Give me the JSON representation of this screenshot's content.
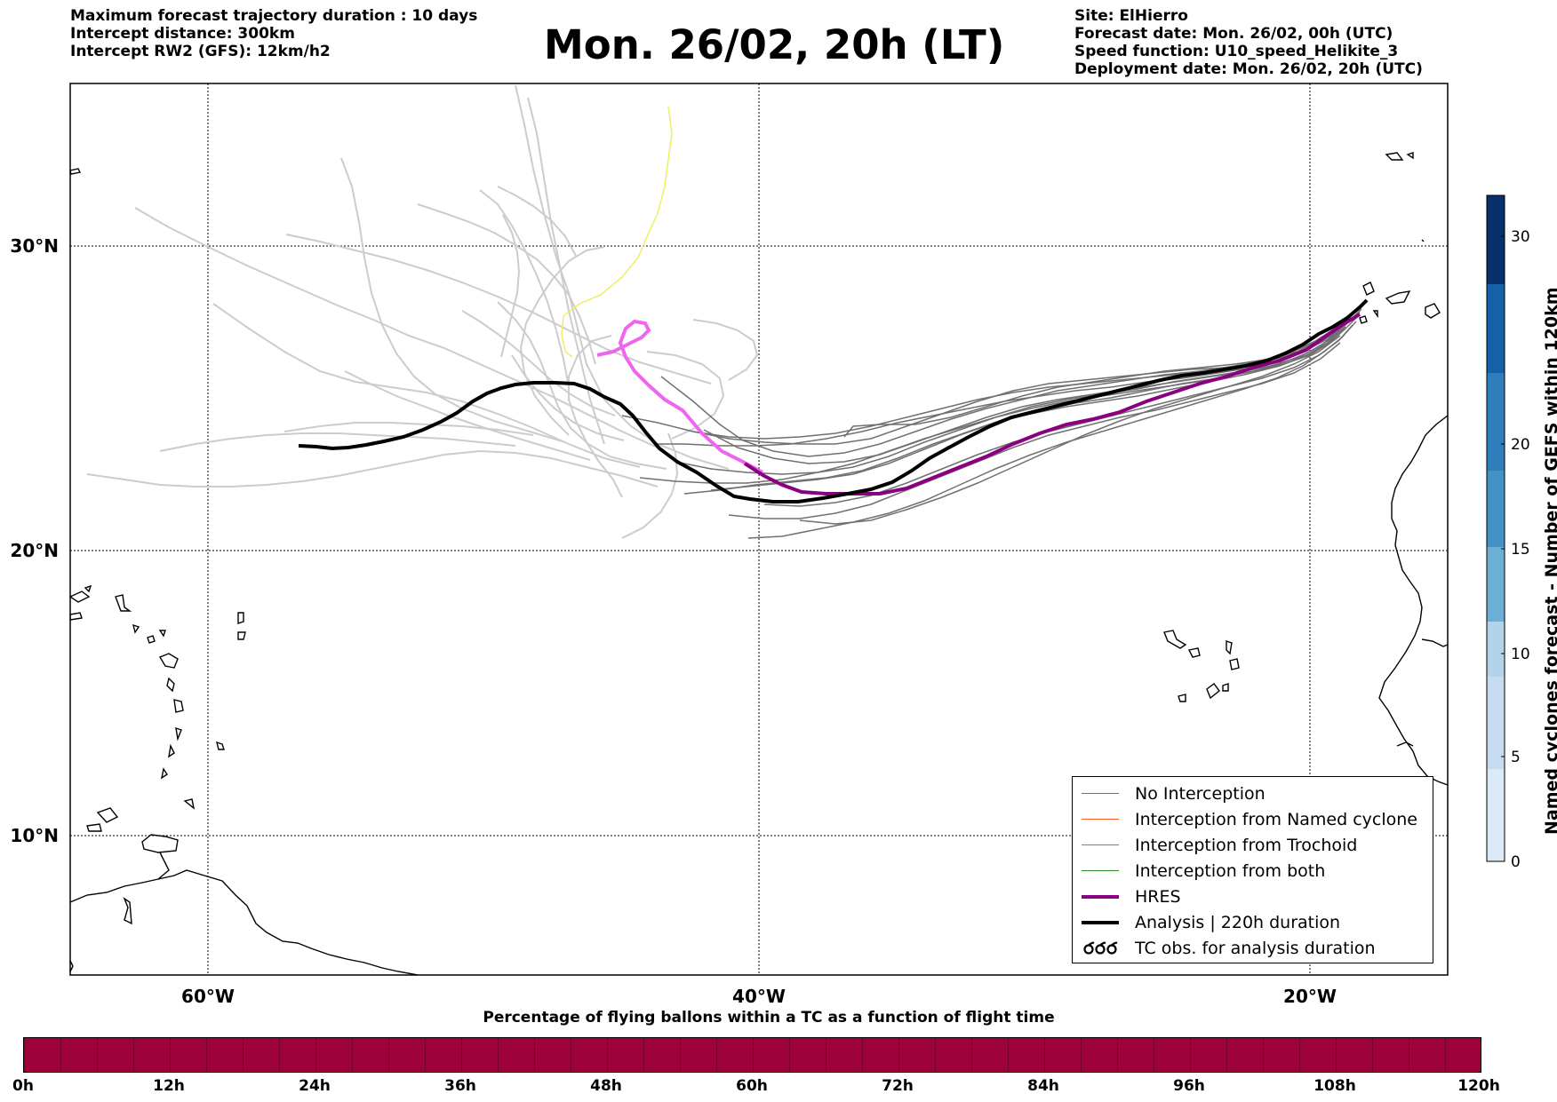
{
  "header": {
    "left": [
      "Maximum forecast trajectory duration : 10 days",
      "Intercept distance: 300km",
      "Intercept RW2 (GFS):  12km/h2"
    ],
    "title": "Mon. 26/02, 20h (LT)",
    "right": [
      "Site: ElHierro",
      "Forecast date: Mon. 26/02, 00h (UTC)",
      "Speed function: U10_speed_Helikite_3",
      "Deployment date: Mon. 26/02, 20h (UTC)"
    ]
  },
  "map": {
    "lat_labels": [
      "30°N",
      "20°N",
      "10°N"
    ],
    "lon_labels": [
      "60°W",
      "40°W",
      "20°W"
    ],
    "gridlines": true
  },
  "legend": {
    "items": [
      {
        "label": "No Interception",
        "color": "#707070",
        "kind": "thin"
      },
      {
        "label": "Interception from Named cyclone",
        "color": "#ff5a1e",
        "kind": "thin"
      },
      {
        "label": "Interception from Trochoid",
        "color": "#8a8a2a",
        "kind": "thin"
      },
      {
        "label": "Interception from both",
        "color": "#2a8a2a",
        "kind": "thin"
      },
      {
        "label": "HRES",
        "color": "#8b0080",
        "kind": "thick"
      },
      {
        "label": "Analysis | 220h duration",
        "color": "#000000",
        "kind": "thick"
      },
      {
        "label": "TC obs. for analysis duration",
        "color": "#000000",
        "kind": "tc"
      }
    ]
  },
  "colorbar_right": {
    "label": "Named cyclones forecast - Number of GEFS within 120km",
    "ticks": [
      "0",
      "5",
      "10",
      "15",
      "20",
      "30"
    ],
    "colors": [
      "#dce9f6",
      "#c6dbef",
      "#9ecae1",
      "#6baed6",
      "#4292c6",
      "#2171b5",
      "#08519c",
      "#08306b"
    ]
  },
  "colorbar_bottom": {
    "title": "Percentage of flying ballons within a TC as a function of flight time",
    "ticks": [
      "0h",
      "12h",
      "24h",
      "36h",
      "48h",
      "60h",
      "72h",
      "84h",
      "96h",
      "108h",
      "120h"
    ],
    "color": "#9e003a"
  },
  "colors": {
    "ensemble_no_intercept": "#707070",
    "ensemble_faded": "#cccccc",
    "yellow_track": "#eeee66",
    "hres": "#8b0080",
    "hres_faded": "#ee66ee",
    "analysis": "#000000"
  }
}
